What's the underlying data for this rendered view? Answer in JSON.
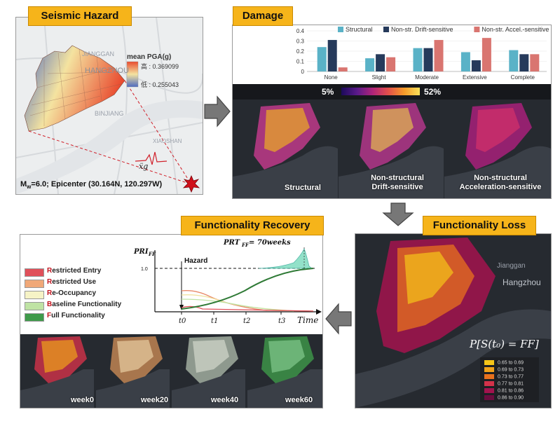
{
  "seismic_hazard": {
    "title": "Seismic Hazard",
    "legend_title": "mean PGA(g)",
    "legend_high": "高 : 0.369099",
    "legend_low": "低 : 0.255043",
    "city_labels": [
      "JIANGGAN",
      "HANGZHOU",
      "BINJIANG",
      "XIAOSHAN"
    ],
    "epicenter_note": "Epicenter (30.164N, 120.297W)",
    "magnitude_base": "M",
    "magnitude_sub": "w",
    "magnitude_value": "=6.0; ",
    "ground_motion_symbol": "ẍg",
    "colors": {
      "high": "#e94b2f",
      "mid": "#f4e3a0",
      "low": "#4f6bc0"
    }
  },
  "damage": {
    "title": "Damage",
    "colorbar_min": "5%",
    "colorbar_max": "52%",
    "map_labels": [
      "Structural",
      "Non-structural\nDrift-sensitive",
      "Non-structural\nAcceleration-sensitive"
    ],
    "chart_data": {
      "type": "bar",
      "categories": [
        "None",
        "Slight",
        "Moderate",
        "Extensive",
        "Complete"
      ],
      "series": [
        {
          "name": "Structural",
          "values": [
            0.24,
            0.13,
            0.23,
            0.19,
            0.21
          ],
          "color": "#5ab2c7"
        },
        {
          "name": "Non-str. Drift-sensitive",
          "values": [
            0.31,
            0.17,
            0.23,
            0.11,
            0.17
          ],
          "color": "#263a5b"
        },
        {
          "name": "Non-str. Accel.-sensitive",
          "values": [
            0.04,
            0.14,
            0.31,
            0.33,
            0.17
          ],
          "color": "#d97570"
        }
      ],
      "ylim": [
        0,
        0.4
      ],
      "yticks": [
        "0",
        "0.1",
        "0.2",
        "0.3",
        "0.4"
      ],
      "legend_position": "top"
    }
  },
  "functionality_loss": {
    "title": "Functionality Loss",
    "city_labels": [
      "Jianggan",
      "Hangzhou"
    ],
    "formula": "P[S(t₀) = FF]",
    "legend": [
      {
        "label": "0.65 to 0.69",
        "color": "#f5c518"
      },
      {
        "label": "0.69 to 0.73",
        "color": "#f0a21a"
      },
      {
        "label": "0.73 to 0.77",
        "color": "#e8711d"
      },
      {
        "label": "0.77 to 0.81",
        "color": "#d3324a"
      },
      {
        "label": "0.81 to 0.86",
        "color": "#a3134e"
      },
      {
        "label": "0.86 to 0.90",
        "color": "#6a0d3f"
      }
    ]
  },
  "functionality_recovery": {
    "title": "Functionality Recovery",
    "legend": [
      {
        "bold": "R",
        "rest": "estricted Entry",
        "color": "#e0505a"
      },
      {
        "bold": "R",
        "rest": "estricted Use",
        "color": "#f0a878"
      },
      {
        "bold": "R",
        "rest": "e-Occupancy",
        "color": "#f6f3c6"
      },
      {
        "bold": "B",
        "rest": "aseline Functionality",
        "color": "#bfe3a4"
      },
      {
        "bold": "F",
        "rest": "ull Functionality",
        "color": "#3f9a4a"
      }
    ],
    "y_axis_label": "PRI",
    "y_axis_sub": "FF",
    "y_tick": "1.0",
    "hazard_label": "Hazard",
    "prt_label": "PRT",
    "prt_sub": "FF",
    "prt_value": " = 70weeks",
    "x_axis_label": "Time",
    "time_ticks": [
      "t0",
      "t1",
      "t2",
      "t3"
    ],
    "weeks": [
      "week0",
      "week20",
      "week40",
      "week60"
    ]
  }
}
